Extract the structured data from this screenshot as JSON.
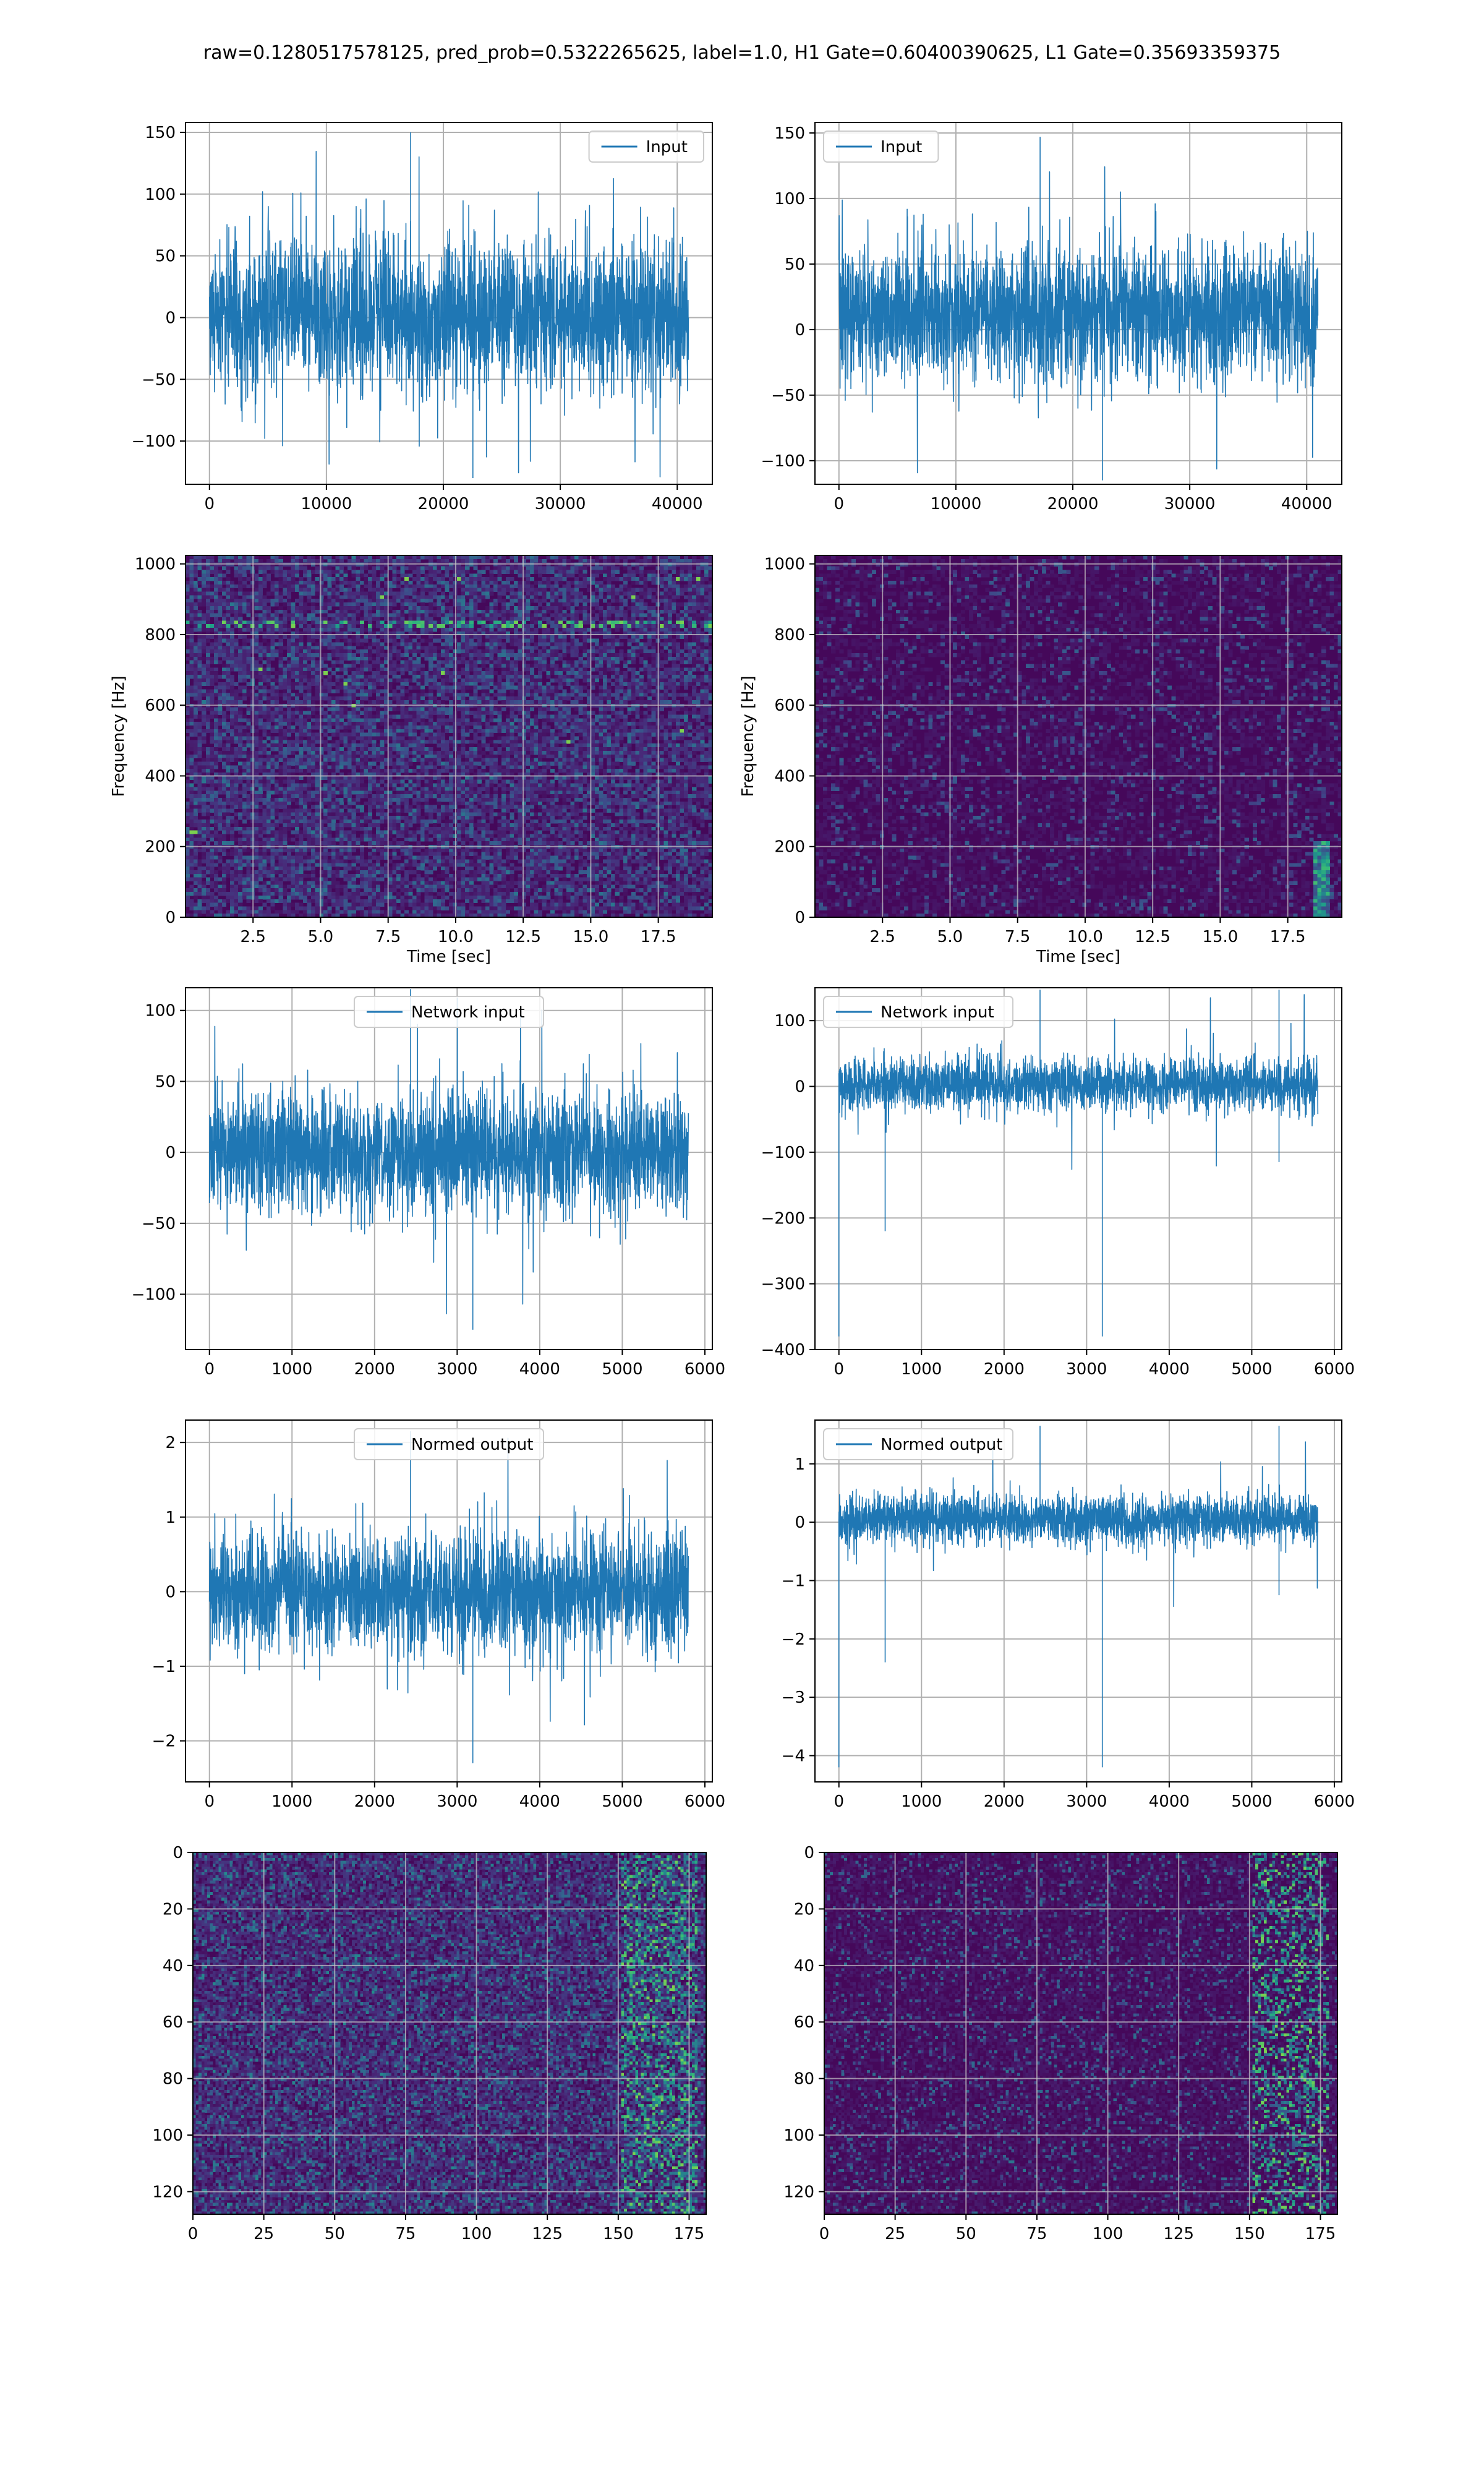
{
  "suptitle": "raw=0.1280517578125, pred_prob=0.5322265625, label=1.0, H1 Gate=0.60400390625, L1 Gate=0.35693359375",
  "chart_data": [
    {
      "id": "h1-input",
      "type": "line",
      "legend": "Input",
      "legend_loc": "upper right",
      "xlim": [
        -2050,
        43000
      ],
      "ylim": [
        -135,
        158
      ],
      "xticks": [
        0,
        10000,
        20000,
        30000,
        40000
      ],
      "xtick_labels": [
        "0",
        "10000",
        "20000",
        "30000",
        "40000"
      ],
      "yticks": [
        -100,
        -50,
        0,
        50,
        100,
        150
      ],
      "ytick_labels": [
        "−100",
        "−50",
        "0",
        "50",
        "100",
        "150"
      ],
      "xlabel": "",
      "ylabel": "",
      "grid": true,
      "color": "#1f77b4",
      "series": [
        {
          "x_start": 0,
          "x_end": 40960,
          "typical_range": [
            -75,
            80
          ],
          "max": 150,
          "min": -130
        }
      ]
    },
    {
      "id": "l1-input",
      "type": "line",
      "legend": "Input",
      "legend_loc": "upper left",
      "xlim": [
        -2050,
        43000
      ],
      "ylim": [
        -118,
        158
      ],
      "xticks": [
        0,
        10000,
        20000,
        30000,
        40000
      ],
      "xtick_labels": [
        "0",
        "10000",
        "20000",
        "30000",
        "40000"
      ],
      "yticks": [
        -100,
        -50,
        0,
        50,
        100,
        150
      ],
      "ytick_labels": [
        "−100",
        "−50",
        "0",
        "50",
        "100",
        "150"
      ],
      "xlabel": "",
      "ylabel": "",
      "grid": true,
      "color": "#1f77b4",
      "series": [
        {
          "x_start": 0,
          "x_end": 40960,
          "typical_range": [
            -55,
            80
          ],
          "max": 147,
          "min": -115
        }
      ]
    },
    {
      "id": "h1-spectrogram",
      "type": "heatmap",
      "colormap": "viridis",
      "xlim": [
        0,
        19.5
      ],
      "ylim": [
        0,
        1024
      ],
      "xticks": [
        2.5,
        5.0,
        7.5,
        10.0,
        12.5,
        15.0,
        17.5
      ],
      "xtick_labels": [
        "2.5",
        "5.0",
        "7.5",
        "10.0",
        "12.5",
        "15.0",
        "17.5"
      ],
      "yticks": [
        0,
        200,
        400,
        600,
        800,
        1000
      ],
      "ytick_labels": [
        "0",
        "200",
        "400",
        "600",
        "800",
        "1000"
      ],
      "xlabel": "Time [sec]",
      "ylabel": "Frequency [Hz]",
      "grid": true
    },
    {
      "id": "l1-spectrogram",
      "type": "heatmap",
      "colormap": "viridis",
      "xlim": [
        0,
        19.5
      ],
      "ylim": [
        0,
        1024
      ],
      "xticks": [
        2.5,
        5.0,
        7.5,
        10.0,
        12.5,
        15.0,
        17.5
      ],
      "xtick_labels": [
        "2.5",
        "5.0",
        "7.5",
        "10.0",
        "12.5",
        "15.0",
        "17.5"
      ],
      "yticks": [
        0,
        200,
        400,
        600,
        800,
        1000
      ],
      "ytick_labels": [
        "0",
        "200",
        "400",
        "600",
        "800",
        "1000"
      ],
      "xlabel": "Time [sec]",
      "ylabel": "Frequency [Hz]",
      "grid": true
    },
    {
      "id": "h1-network-input",
      "type": "line",
      "legend": "Network input",
      "legend_loc": "upper center",
      "xlim": [
        -290,
        6090
      ],
      "ylim": [
        -139,
        116
      ],
      "xticks": [
        0,
        1000,
        2000,
        3000,
        4000,
        5000,
        6000
      ],
      "xtick_labels": [
        "0",
        "1000",
        "2000",
        "3000",
        "4000",
        "5000",
        "6000"
      ],
      "yticks": [
        -100,
        -50,
        0,
        50,
        100
      ],
      "ytick_labels": [
        "−100",
        "−50",
        "0",
        "50",
        "100"
      ],
      "xlabel": "",
      "ylabel": "",
      "grid": true,
      "color": "#1f77b4",
      "series": [
        {
          "x_start": 0,
          "x_end": 5800,
          "typical_range": [
            -55,
            55
          ],
          "max": 115,
          "min": -125
        }
      ]
    },
    {
      "id": "l1-network-input",
      "type": "line",
      "legend": "Network input",
      "legend_loc": "upper left",
      "xlim": [
        -290,
        6090
      ],
      "ylim": [
        -400,
        150
      ],
      "xticks": [
        0,
        1000,
        2000,
        3000,
        4000,
        5000,
        6000
      ],
      "xtick_labels": [
        "0",
        "1000",
        "2000",
        "3000",
        "4000",
        "5000",
        "6000"
      ],
      "yticks": [
        -400,
        -300,
        -200,
        -100,
        0,
        100
      ],
      "ytick_labels": [
        "−400",
        "−300",
        "−200",
        "−100",
        "0",
        "100"
      ],
      "xlabel": "",
      "ylabel": "",
      "grid": true,
      "color": "#1f77b4",
      "series": [
        {
          "x_start": 0,
          "x_end": 5800,
          "typical_range": [
            -50,
            55
          ],
          "max": 147,
          "min": -380,
          "spikes": [
            [
              0,
              -380
            ],
            [
              560,
              -220
            ],
            [
              5330,
              147
            ],
            [
              5330,
              -115
            ]
          ]
        }
      ]
    },
    {
      "id": "h1-normed-output",
      "type": "line",
      "legend": "Normed output",
      "legend_loc": "upper center",
      "xlim": [
        -290,
        6090
      ],
      "ylim": [
        -2.55,
        2.3
      ],
      "xticks": [
        0,
        1000,
        2000,
        3000,
        4000,
        5000,
        6000
      ],
      "xtick_labels": [
        "0",
        "1000",
        "2000",
        "3000",
        "4000",
        "5000",
        "6000"
      ],
      "yticks": [
        -2,
        -1,
        0,
        1,
        2
      ],
      "ytick_labels": [
        "−2",
        "−1",
        "0",
        "1",
        "2"
      ],
      "xlabel": "",
      "ylabel": "",
      "grid": true,
      "color": "#1f77b4",
      "series": [
        {
          "x_start": 0,
          "x_end": 5800,
          "typical_range": [
            -1.0,
            1.0
          ],
          "max": 2.15,
          "min": -2.3
        }
      ]
    },
    {
      "id": "l1-normed-output",
      "type": "line",
      "legend": "Normed output",
      "legend_loc": "upper left",
      "xlim": [
        -290,
        6090
      ],
      "ylim": [
        -4.45,
        1.75
      ],
      "xticks": [
        0,
        1000,
        2000,
        3000,
        4000,
        5000,
        6000
      ],
      "xtick_labels": [
        "0",
        "1000",
        "2000",
        "3000",
        "4000",
        "5000",
        "6000"
      ],
      "yticks": [
        -4,
        -3,
        -2,
        -1,
        0,
        1
      ],
      "ytick_labels": [
        "−4",
        "−3",
        "−2",
        "−1",
        "0",
        "1"
      ],
      "xlabel": "",
      "ylabel": "",
      "grid": true,
      "color": "#1f77b4",
      "series": [
        {
          "x_start": 0,
          "x_end": 5800,
          "typical_range": [
            -0.5,
            0.6
          ],
          "max": 1.65,
          "min": -4.2,
          "spikes": [
            [
              0,
              -4.2
            ],
            [
              560,
              -2.4
            ],
            [
              5330,
              1.65
            ],
            [
              5330,
              -1.25
            ]
          ]
        }
      ]
    },
    {
      "id": "h1-feature-map",
      "type": "heatmap",
      "colormap": "viridis",
      "y_inverted": true,
      "xlim": [
        0,
        181
      ],
      "ylim": [
        128,
        0
      ],
      "xticks": [
        0,
        25,
        50,
        75,
        100,
        125,
        150,
        175
      ],
      "xtick_labels": [
        "0",
        "25",
        "50",
        "75",
        "100",
        "125",
        "150",
        "175"
      ],
      "yticks": [
        0,
        20,
        40,
        60,
        80,
        100,
        120
      ],
      "ytick_labels": [
        "0",
        "20",
        "40",
        "60",
        "80",
        "100",
        "120"
      ],
      "xlabel": "",
      "ylabel": "",
      "grid": true
    },
    {
      "id": "l1-feature-map",
      "type": "heatmap",
      "colormap": "viridis",
      "y_inverted": true,
      "xlim": [
        0,
        181
      ],
      "ylim": [
        128,
        0
      ],
      "xticks": [
        0,
        25,
        50,
        75,
        100,
        125,
        150,
        175
      ],
      "xtick_labels": [
        "0",
        "25",
        "50",
        "75",
        "100",
        "125",
        "150",
        "175"
      ],
      "yticks": [
        0,
        20,
        40,
        60,
        80,
        100,
        120
      ],
      "ytick_labels": [
        "0",
        "20",
        "40",
        "60",
        "80",
        "100",
        "120"
      ],
      "xlabel": "",
      "ylabel": "",
      "grid": true
    }
  ]
}
